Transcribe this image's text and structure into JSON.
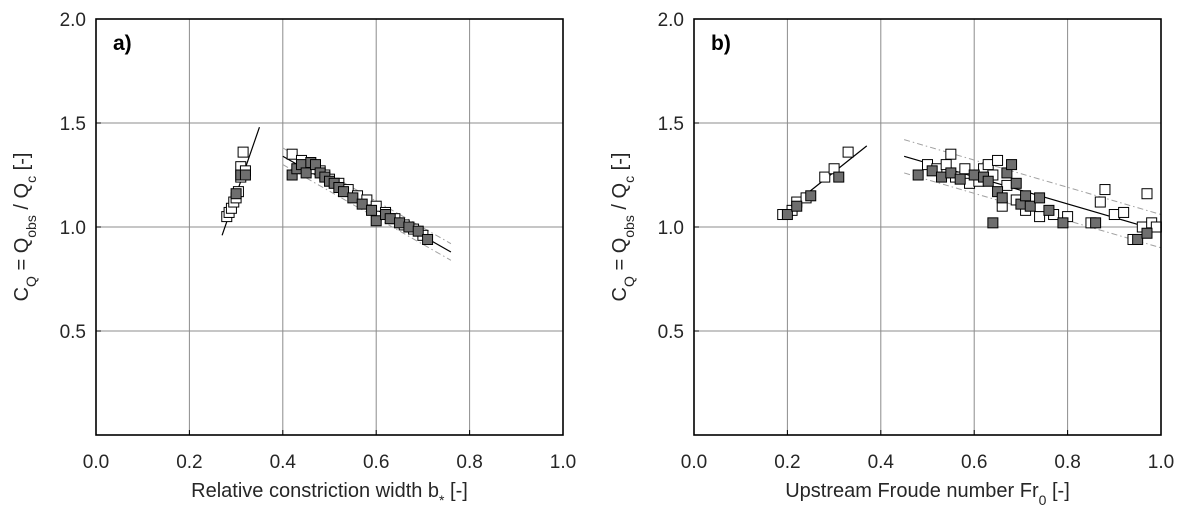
{
  "chart_data": [
    {
      "type": "scatter",
      "panel_label": "a)",
      "xlabel_main": "Relative constriction width b",
      "xlabel_sub": "*",
      "xlabel_tail": " [-]",
      "ylabel": {
        "a": "C",
        "a_sub": "Q",
        "b": " = Q",
        "b_sub": "obs",
        "c": " / Q",
        "c_sub": "c",
        "d": "  [-]"
      },
      "xlim": [
        0,
        1
      ],
      "ylim": [
        0,
        2
      ],
      "xticks": [
        "0.0",
        "0.2",
        "0.4",
        "0.6",
        "0.8",
        "1.0"
      ],
      "yticks": [
        "0.5",
        "1.0",
        "1.5",
        "2.0"
      ],
      "grid": true,
      "series": [
        {
          "marker": "open-square",
          "points": [
            [
              0.28,
              1.05
            ],
            [
              0.285,
              1.07
            ],
            [
              0.29,
              1.09
            ],
            [
              0.295,
              1.12
            ],
            [
              0.3,
              1.14
            ],
            [
              0.305,
              1.17
            ],
            [
              0.31,
              1.24
            ],
            [
              0.31,
              1.29
            ],
            [
              0.315,
              1.36
            ],
            [
              0.32,
              1.27
            ],
            [
              0.42,
              1.35
            ],
            [
              0.44,
              1.32
            ],
            [
              0.46,
              1.3
            ],
            [
              0.47,
              1.28
            ],
            [
              0.48,
              1.27
            ],
            [
              0.49,
              1.25
            ],
            [
              0.5,
              1.23
            ],
            [
              0.52,
              1.21
            ],
            [
              0.54,
              1.18
            ],
            [
              0.56,
              1.15
            ],
            [
              0.58,
              1.13
            ],
            [
              0.6,
              1.1
            ],
            [
              0.62,
              1.07
            ],
            [
              0.64,
              1.04
            ],
            [
              0.66,
              1.01
            ],
            [
              0.68,
              0.99
            ],
            [
              0.7,
              0.96
            ]
          ]
        },
        {
          "marker": "filled-square",
          "points": [
            [
              0.3,
              1.16
            ],
            [
              0.31,
              1.25
            ],
            [
              0.32,
              1.25
            ],
            [
              0.42,
              1.25
            ],
            [
              0.43,
              1.28
            ],
            [
              0.44,
              1.3
            ],
            [
              0.45,
              1.26
            ],
            [
              0.46,
              1.31
            ],
            [
              0.47,
              1.3
            ],
            [
              0.48,
              1.26
            ],
            [
              0.49,
              1.24
            ],
            [
              0.5,
              1.22
            ],
            [
              0.51,
              1.21
            ],
            [
              0.52,
              1.19
            ],
            [
              0.53,
              1.17
            ],
            [
              0.55,
              1.14
            ],
            [
              0.57,
              1.11
            ],
            [
              0.59,
              1.08
            ],
            [
              0.6,
              1.03
            ],
            [
              0.62,
              1.06
            ],
            [
              0.63,
              1.04
            ],
            [
              0.65,
              1.02
            ],
            [
              0.67,
              1.0
            ],
            [
              0.69,
              0.98
            ],
            [
              0.71,
              0.94
            ]
          ]
        }
      ],
      "fit_lines": [
        {
          "style": "solid",
          "points": [
            [
              0.27,
              0.96
            ],
            [
              0.35,
              1.48
            ]
          ]
        },
        {
          "style": "solid",
          "points": [
            [
              0.4,
              1.34
            ],
            [
              0.76,
              0.88
            ]
          ]
        },
        {
          "style": "dashdot",
          "points": [
            [
              0.4,
              1.38
            ],
            [
              0.76,
              0.92
            ]
          ]
        },
        {
          "style": "dashdot",
          "points": [
            [
              0.4,
              1.3
            ],
            [
              0.76,
              0.84
            ]
          ]
        }
      ]
    },
    {
      "type": "scatter",
      "panel_label": "b)",
      "xlabel_main": "Upstream Froude number Fr",
      "xlabel_sub": "0",
      "xlabel_tail": " [-]",
      "ylabel": {
        "a": "C",
        "a_sub": "Q",
        "b": " = Q",
        "b_sub": "obs",
        "c": " / Q",
        "c_sub": "c",
        "d": "  [-]"
      },
      "xlim": [
        0,
        1
      ],
      "ylim": [
        0,
        2
      ],
      "xticks": [
        "0.0",
        "0.2",
        "0.4",
        "0.6",
        "0.8",
        "1.0"
      ],
      "yticks": [
        "0.5",
        "1.0",
        "1.5",
        "2.0"
      ],
      "grid": true,
      "series": [
        {
          "marker": "open-square",
          "points": [
            [
              0.19,
              1.06
            ],
            [
              0.21,
              1.08
            ],
            [
              0.22,
              1.12
            ],
            [
              0.24,
              1.14
            ],
            [
              0.28,
              1.24
            ],
            [
              0.3,
              1.28
            ],
            [
              0.33,
              1.36
            ],
            [
              0.5,
              1.3
            ],
            [
              0.52,
              1.28
            ],
            [
              0.54,
              1.3
            ],
            [
              0.55,
              1.35
            ],
            [
              0.56,
              1.24
            ],
            [
              0.58,
              1.28
            ],
            [
              0.59,
              1.21
            ],
            [
              0.61,
              1.22
            ],
            [
              0.62,
              1.28
            ],
            [
              0.63,
              1.3
            ],
            [
              0.64,
              1.25
            ],
            [
              0.65,
              1.32
            ],
            [
              0.66,
              1.1
            ],
            [
              0.67,
              1.2
            ],
            [
              0.69,
              1.13
            ],
            [
              0.71,
              1.08
            ],
            [
              0.74,
              1.05
            ],
            [
              0.77,
              1.06
            ],
            [
              0.8,
              1.05
            ],
            [
              0.85,
              1.02
            ],
            [
              0.87,
              1.12
            ],
            [
              0.88,
              1.18
            ],
            [
              0.9,
              1.06
            ],
            [
              0.92,
              1.07
            ],
            [
              0.94,
              0.94
            ],
            [
              0.96,
              1.0
            ],
            [
              0.97,
              1.16
            ],
            [
              0.98,
              1.02
            ],
            [
              0.99,
              1.0
            ]
          ]
        },
        {
          "marker": "filled-square",
          "points": [
            [
              0.2,
              1.06
            ],
            [
              0.22,
              1.1
            ],
            [
              0.25,
              1.15
            ],
            [
              0.31,
              1.24
            ],
            [
              0.48,
              1.25
            ],
            [
              0.51,
              1.27
            ],
            [
              0.53,
              1.24
            ],
            [
              0.55,
              1.26
            ],
            [
              0.57,
              1.23
            ],
            [
              0.6,
              1.25
            ],
            [
              0.62,
              1.24
            ],
            [
              0.63,
              1.22
            ],
            [
              0.64,
              1.02
            ],
            [
              0.65,
              1.17
            ],
            [
              0.66,
              1.14
            ],
            [
              0.67,
              1.26
            ],
            [
              0.68,
              1.3
            ],
            [
              0.69,
              1.21
            ],
            [
              0.7,
              1.11
            ],
            [
              0.71,
              1.15
            ],
            [
              0.72,
              1.1
            ],
            [
              0.74,
              1.14
            ],
            [
              0.76,
              1.08
            ],
            [
              0.79,
              1.02
            ],
            [
              0.86,
              1.02
            ],
            [
              0.95,
              0.94
            ],
            [
              0.97,
              0.97
            ]
          ]
        }
      ],
      "fit_lines": [
        {
          "style": "solid",
          "points": [
            [
              0.18,
              1.05
            ],
            [
              0.37,
              1.39
            ]
          ]
        },
        {
          "style": "solid",
          "points": [
            [
              0.45,
              1.34
            ],
            [
              1.0,
              0.98
            ]
          ]
        },
        {
          "style": "dashdot",
          "points": [
            [
              0.45,
              1.42
            ],
            [
              1.0,
              1.06
            ]
          ]
        },
        {
          "style": "dashdot",
          "points": [
            [
              0.45,
              1.26
            ],
            [
              1.0,
              0.9
            ]
          ]
        }
      ]
    }
  ]
}
